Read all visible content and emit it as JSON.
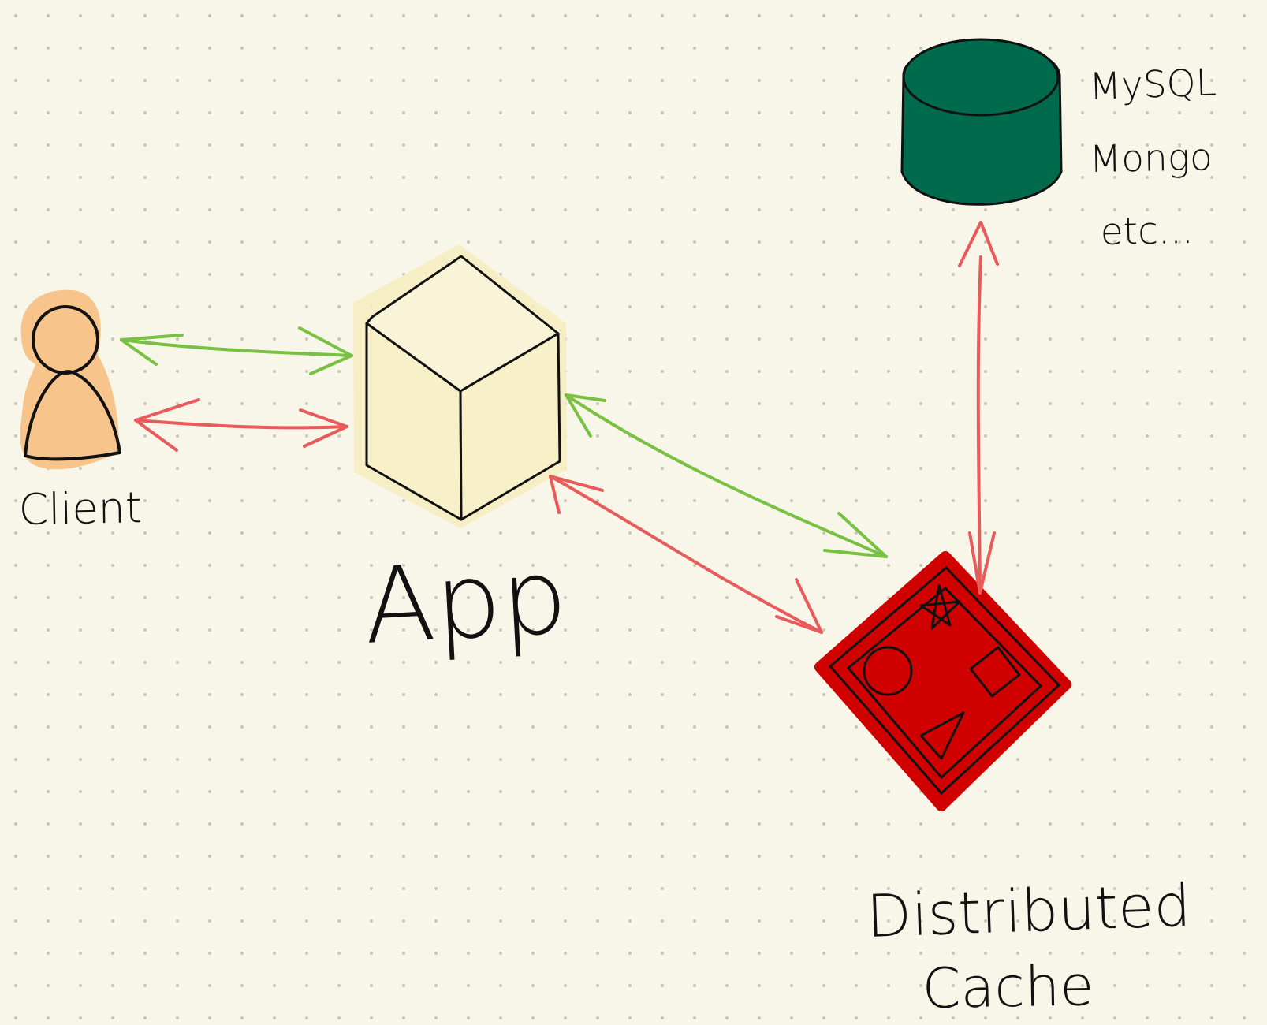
{
  "labels": {
    "client": "Client",
    "app": "App",
    "database_lines": [
      "MySQL",
      "Mongo",
      "etc..."
    ],
    "cache_lines": [
      "Distributed",
      "Cache"
    ]
  },
  "colors": {
    "background": "#f8f6e9",
    "dot_grid": "#c9c6b6",
    "client_fill": "#f7c58c",
    "app_fill": "#f7f0c8",
    "app_glow": "#f6ecbe",
    "database_fill": "#006b4c",
    "cache_fill": "#d10000",
    "request_arrow": "#e95b5b",
    "response_arrow": "#79c143",
    "ink": "#111111"
  },
  "icons": {
    "client": "person-icon",
    "app": "cube-icon",
    "database": "database-cylinder-icon",
    "cache": "cache-shapes-icon",
    "cache_shapes": [
      "star-icon",
      "circle-icon",
      "square-icon",
      "triangle-icon"
    ]
  }
}
